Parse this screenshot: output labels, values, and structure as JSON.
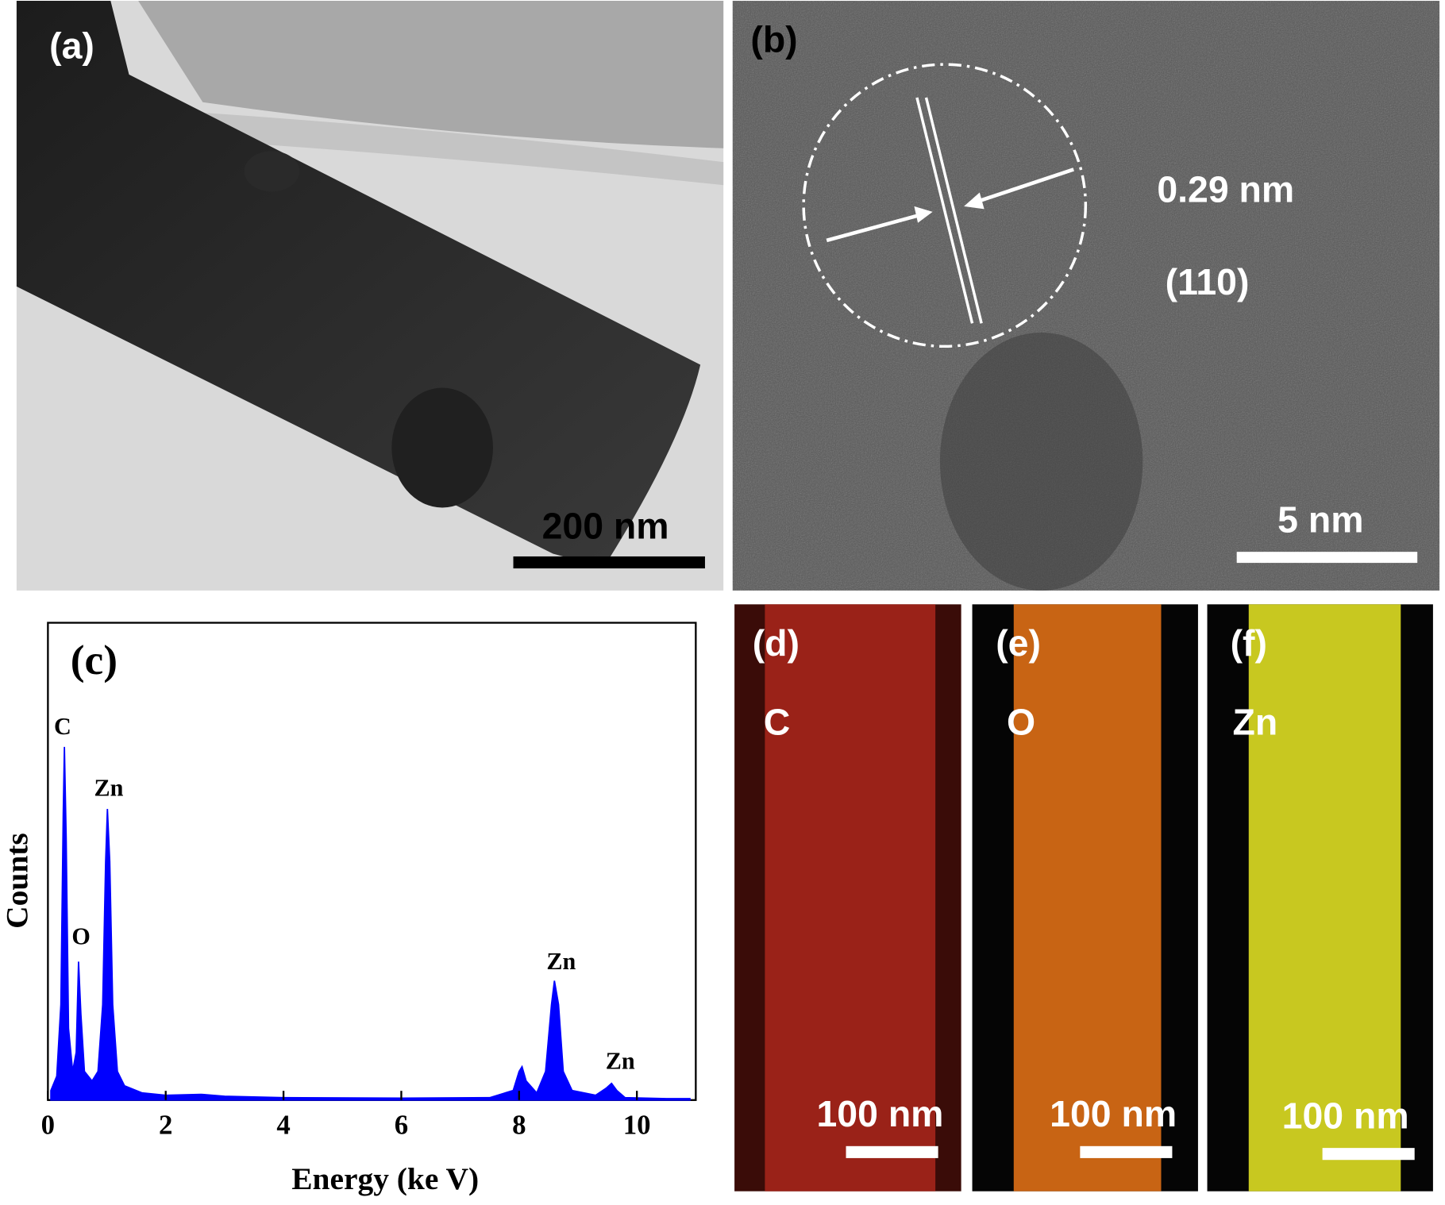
{
  "panels": {
    "a": {
      "label": "(a)",
      "scale_bar": "200 nm"
    },
    "b": {
      "label": "(b)",
      "d_spacing": "0.29 nm",
      "plane": "(110)",
      "scale_bar": "5 nm"
    },
    "d": {
      "label": "(d)",
      "element": "C",
      "scale_bar": "100 nm"
    },
    "e": {
      "label": "(e)",
      "element": "O",
      "scale_bar": "100 nm"
    },
    "f": {
      "label": "(f)",
      "element": "Zn",
      "scale_bar": "100 nm"
    }
  },
  "chart_data": {
    "type": "area",
    "panel_label": "(c)",
    "x_label": "Energy (ke V)",
    "y_label": "Counts",
    "x": [
      0.05,
      0.15,
      0.22,
      0.26,
      0.28,
      0.31,
      0.35,
      0.42,
      0.48,
      0.52,
      0.56,
      0.62,
      0.75,
      0.85,
      0.93,
      0.98,
      1.01,
      1.05,
      1.1,
      1.18,
      1.3,
      1.6,
      2.0,
      2.6,
      3.0,
      4.0,
      6.0,
      7.5,
      7.9,
      8.0,
      8.05,
      8.12,
      8.3,
      8.45,
      8.55,
      8.6,
      8.67,
      8.75,
      8.9,
      9.3,
      9.48,
      9.57,
      9.66,
      9.8,
      10.5,
      10.9
    ],
    "values": [
      2,
      5,
      20,
      60,
      74,
      55,
      15,
      6,
      10,
      29,
      18,
      6,
      4,
      6,
      20,
      50,
      61,
      50,
      20,
      6,
      3,
      1.5,
      1,
      1.2,
      0.8,
      0.5,
      0.4,
      0.5,
      2,
      6,
      7,
      4,
      1.5,
      6,
      20,
      25,
      20,
      6,
      2,
      1,
      2.5,
      3.5,
      2,
      0.5,
      0.3,
      0.3
    ],
    "color": "#0000ff",
    "xlim": [
      0,
      11
    ],
    "ylim": [
      0,
      100
    ],
    "xticks": [
      0,
      2,
      4,
      6,
      8,
      10
    ],
    "annotations": [
      "C",
      "O",
      "Zn",
      "Zn",
      "Zn"
    ]
  }
}
